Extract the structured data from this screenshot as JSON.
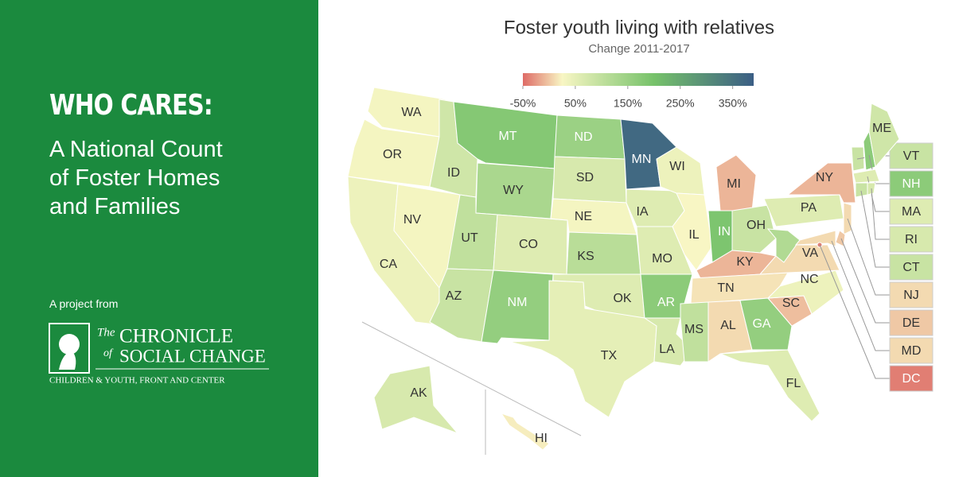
{
  "sidebar": {
    "heading": "WHO CARES:",
    "lines": [
      "A National Count",
      "of Foster Homes",
      "and Families"
    ],
    "project": "A project from",
    "logo": {
      "the": "The",
      "chronicle": "CHRONICLE",
      "of": "of",
      "social_change": "SOCIAL CHANGE",
      "tagline": "CHILDREN & YOUTH, FRONT AND CENTER"
    }
  },
  "chart_data": {
    "type": "choropleth",
    "title": "Foster youth living with relatives",
    "subtitle": "Change 2011-2017",
    "colorbar": {
      "range": [
        -50,
        390
      ],
      "ticks": [
        {
          "value": -50,
          "label": "-50%"
        },
        {
          "value": 50,
          "label": "50%"
        },
        {
          "value": 150,
          "label": "150%"
        },
        {
          "value": 250,
          "label": "250%"
        },
        {
          "value": 350,
          "label": "350%"
        }
      ],
      "stops": [
        [
          -50,
          "#de6b66"
        ],
        [
          25,
          "#f8f6c4"
        ],
        [
          200,
          "#76c26a"
        ],
        [
          390,
          "#3b5e85"
        ]
      ]
    },
    "states": [
      {
        "name": "WA",
        "value": 30
      },
      {
        "name": "OR",
        "value": 30
      },
      {
        "name": "CA",
        "value": 40
      },
      {
        "name": "NV",
        "value": 30
      },
      {
        "name": "ID",
        "value": 80
      },
      {
        "name": "MT",
        "value": 180
      },
      {
        "name": "WY",
        "value": 130
      },
      {
        "name": "UT",
        "value": 100
      },
      {
        "name": "CO",
        "value": 60
      },
      {
        "name": "AZ",
        "value": 90
      },
      {
        "name": "NM",
        "value": 160
      },
      {
        "name": "ND",
        "value": 150
      },
      {
        "name": "SD",
        "value": 70
      },
      {
        "name": "NE",
        "value": 30
      },
      {
        "name": "KS",
        "value": 110
      },
      {
        "name": "OK",
        "value": 60
      },
      {
        "name": "TX",
        "value": 50
      },
      {
        "name": "MN",
        "value": 370
      },
      {
        "name": "IA",
        "value": 60
      },
      {
        "name": "MO",
        "value": 60
      },
      {
        "name": "AR",
        "value": 170
      },
      {
        "name": "LA",
        "value": 70
      },
      {
        "name": "WI",
        "value": 40
      },
      {
        "name": "IL",
        "value": 25
      },
      {
        "name": "MI",
        "value": -10
      },
      {
        "name": "IN",
        "value": 190
      },
      {
        "name": "OH",
        "value": 90
      },
      {
        "name": "KY",
        "value": -10
      },
      {
        "name": "TN",
        "value": 15
      },
      {
        "name": "MS",
        "value": 100
      },
      {
        "name": "AL",
        "value": 10
      },
      {
        "name": "GA",
        "value": 160
      },
      {
        "name": "FL",
        "value": 60
      },
      {
        "name": "SC",
        "value": -5
      },
      {
        "name": "NC",
        "value": 40
      },
      {
        "name": "VA",
        "value": 10
      },
      {
        "name": null,
        "value": 120
      },
      {
        "name": "PA",
        "value": 60
      },
      {
        "name": "NY",
        "value": -10
      },
      {
        "name": "VT",
        "value": 90
      },
      {
        "name": "NH",
        "value": 170
      },
      {
        "name": "ME",
        "value": 80
      },
      {
        "name": "MA",
        "value": 60
      },
      {
        "name": "CT",
        "value": 90
      },
      {
        "name": "RI",
        "value": 70
      },
      {
        "name": "NJ",
        "value": 10
      },
      {
        "name": "DE",
        "value": 0
      },
      {
        "name": "MD",
        "value": 10
      },
      {
        "name": "DC",
        "value": -40
      },
      {
        "name": "AK",
        "value": 70
      },
      {
        "name": "HI",
        "value": 20
      }
    ]
  }
}
